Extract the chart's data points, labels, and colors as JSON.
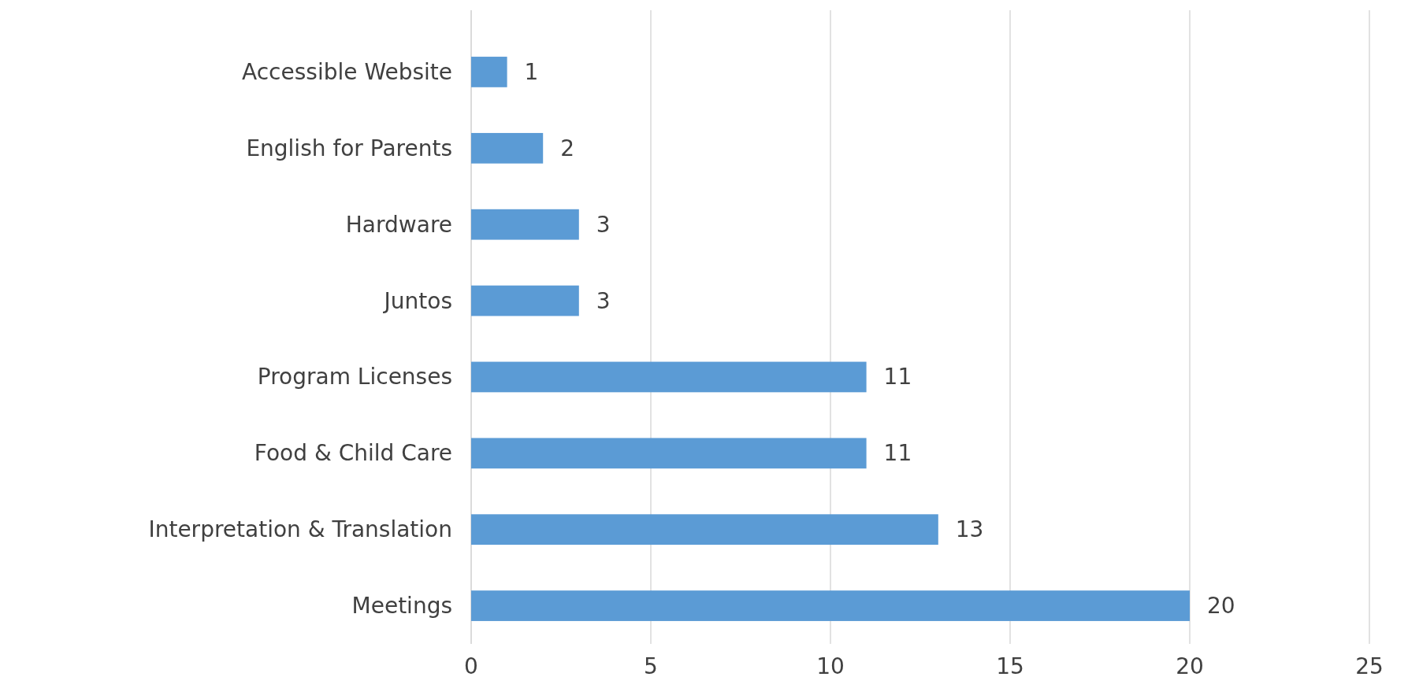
{
  "chart_data": {
    "type": "bar",
    "orientation": "horizontal",
    "categories": [
      "Accessible Website",
      "English for Parents",
      "Hardware",
      "Juntos",
      "Program Licenses",
      "Food & Child Care",
      "Interpretation & Translation",
      "Meetings"
    ],
    "values": [
      1,
      2,
      3,
      3,
      11,
      11,
      13,
      20
    ],
    "color": "#5b9bd5",
    "xlim": [
      0,
      25
    ],
    "xticks": [
      0,
      5,
      10,
      15,
      20,
      25
    ],
    "grid": "x",
    "data_labels": true
  }
}
